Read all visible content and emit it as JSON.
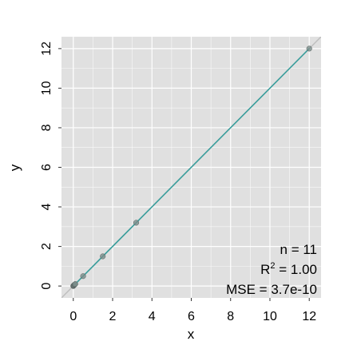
{
  "chart_data": {
    "type": "scatter",
    "title": "",
    "xlabel": "x",
    "ylabel": "y",
    "xlim": [
      -0.6,
      12.6
    ],
    "ylim": [
      -0.6,
      12.6
    ],
    "x_ticks": [
      0,
      2,
      4,
      6,
      8,
      10,
      12
    ],
    "y_ticks": [
      0,
      2,
      4,
      6,
      8,
      10,
      12
    ],
    "x_tick_labels": [
      "0",
      "2",
      "4",
      "6",
      "8",
      "10",
      "12"
    ],
    "y_tick_labels": [
      "0",
      "2",
      "4",
      "6",
      "8",
      "10",
      "12"
    ],
    "grid": true,
    "points": {
      "x": [
        0.0,
        0.01,
        0.02,
        0.04,
        0.06,
        0.08,
        0.1,
        0.5,
        1.5,
        3.2,
        12.0
      ],
      "y": [
        0.0,
        0.01,
        0.02,
        0.04,
        0.06,
        0.08,
        0.1,
        0.5,
        1.5,
        3.2,
        12.0
      ]
    },
    "identity_line": {
      "color": "#bdbdbd"
    },
    "fit_line": {
      "color": "#3a9e9c"
    },
    "point_color": "#7a8c8a",
    "panel_background": "#e0e0e0",
    "grid_color": "#ffffff",
    "annotations": {
      "n": "n = 11",
      "r2_prefix": "R",
      "r2_sup": "2",
      "r2_value": " = 1.00",
      "mse": "MSE = 3.7e-10"
    }
  }
}
